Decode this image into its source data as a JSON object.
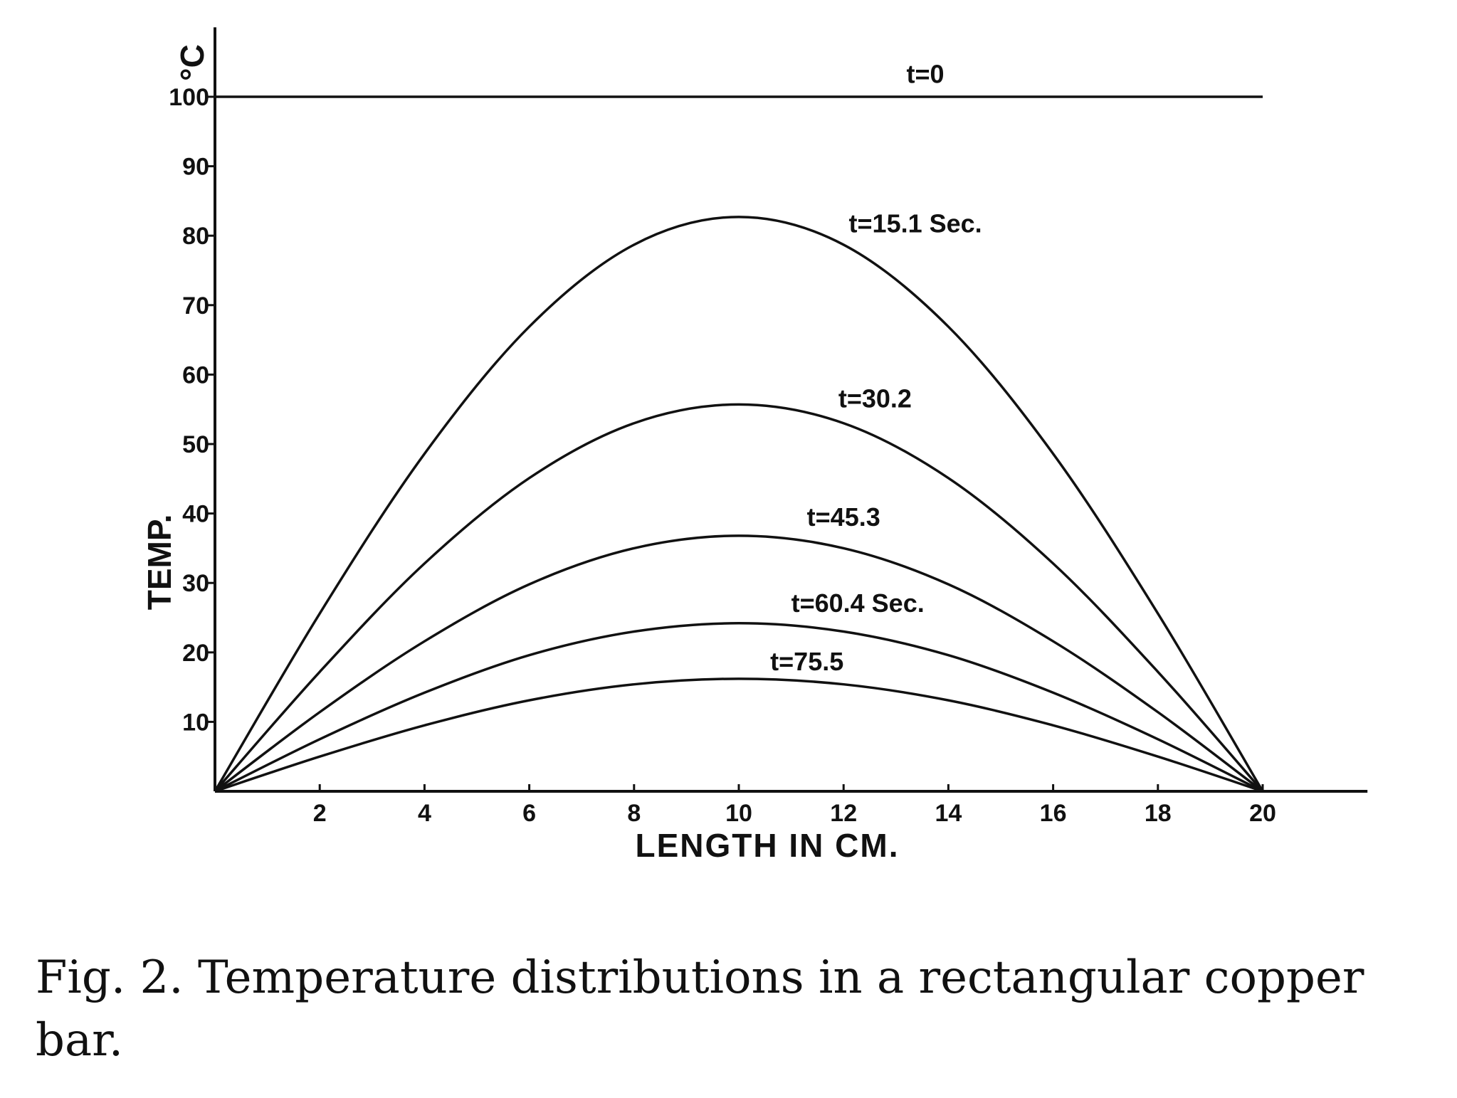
{
  "caption": {
    "prefix": "Fig. 2.",
    "text": "Temperature distributions in a rectangular copper bar."
  },
  "chart_data": {
    "type": "line",
    "xlabel": "LENGTH IN CM.",
    "ylabel": "TEMP.",
    "yunit": "°C",
    "xlim": [
      0,
      22
    ],
    "ylim": [
      0,
      110
    ],
    "xticks": [
      2,
      4,
      6,
      8,
      10,
      12,
      14,
      16,
      18,
      20
    ],
    "yticks": [
      10,
      20,
      30,
      40,
      50,
      60,
      70,
      80,
      90,
      100
    ],
    "grid": false,
    "series": [
      {
        "name": "t=0",
        "x": [
          0,
          20
        ],
        "y": [
          100,
          100
        ],
        "label_at": [
          13.2,
          102
        ]
      },
      {
        "name": "t=15.1 Sec.",
        "x": [
          0,
          2,
          4,
          6,
          8,
          10,
          12,
          14,
          16,
          18,
          20
        ],
        "y": [
          0,
          25.6,
          48.6,
          66.9,
          78.7,
          82.7,
          78.7,
          66.9,
          48.6,
          25.6,
          0
        ],
        "label_at": [
          12.1,
          80.5
        ]
      },
      {
        "name": "t=30.2",
        "x": [
          0,
          2,
          4,
          6,
          8,
          10,
          12,
          14,
          16,
          18,
          20
        ],
        "y": [
          0,
          17.2,
          32.8,
          45.1,
          53.0,
          55.7,
          53.0,
          45.1,
          32.8,
          17.2,
          0
        ],
        "label_at": [
          11.9,
          55.3
        ]
      },
      {
        "name": "t=45.3",
        "x": [
          0,
          2,
          4,
          6,
          8,
          10,
          12,
          14,
          16,
          18,
          20
        ],
        "y": [
          0,
          11.4,
          21.6,
          29.8,
          35.0,
          36.8,
          35.0,
          29.8,
          21.6,
          11.4,
          0
        ],
        "label_at": [
          11.3,
          38.2
        ]
      },
      {
        "name": "t=60.4 Sec.",
        "x": [
          0,
          2,
          4,
          6,
          8,
          10,
          12,
          14,
          16,
          18,
          20
        ],
        "y": [
          0,
          7.5,
          14.2,
          19.6,
          23.0,
          24.2,
          23.0,
          19.6,
          14.2,
          7.5,
          0
        ],
        "label_at": [
          11.0,
          25.8
        ]
      },
      {
        "name": "t=75.5",
        "x": [
          0,
          2,
          4,
          6,
          8,
          10,
          12,
          14,
          16,
          18,
          20
        ],
        "y": [
          0,
          5.0,
          9.5,
          13.1,
          15.4,
          16.2,
          15.4,
          13.1,
          9.5,
          5.0,
          0
        ],
        "label_at": [
          10.6,
          17.4
        ]
      }
    ]
  }
}
